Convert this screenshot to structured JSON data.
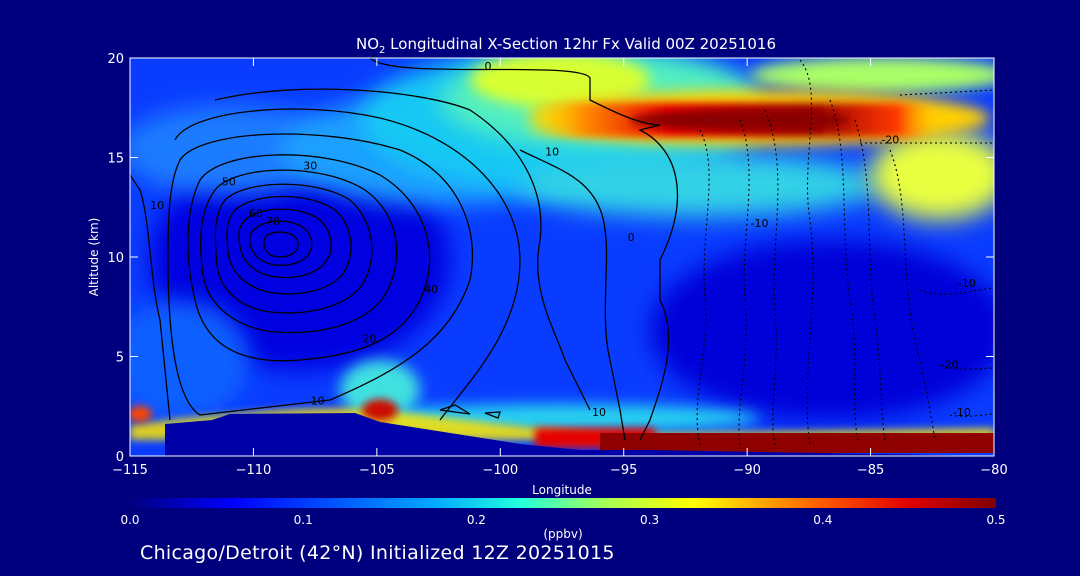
{
  "chart_data": {
    "type": "heatmap",
    "title": "NO₂ Longitudinal X-Section 12hr  Fx Valid 00Z 20251016",
    "title_parts": {
      "lead": "NO",
      "sub": "2",
      "rest": " Longitudinal X-Section 12hr  Fx Valid 00Z 20251016"
    },
    "xlabel": "Longitude",
    "ylabel": "Altitude (km)",
    "xlim": [
      -115,
      -80
    ],
    "ylim": [
      0,
      20
    ],
    "x_ticks": [
      -115,
      -110,
      -105,
      -100,
      -95,
      -90,
      -85,
      -80
    ],
    "y_ticks": [
      0,
      5,
      10,
      15,
      20
    ],
    "colorbar": {
      "label": "(ppbv)",
      "range": [
        0.0,
        0.5
      ],
      "ticks": [
        "0.0",
        "0.1",
        "0.2",
        "0.3",
        "0.4",
        "0.5"
      ]
    },
    "colors": {
      "background": "#00007f",
      "terrain": "#0000a8",
      "contour": "#000000"
    },
    "contour_labels": [
      {
        "text": "0",
        "lon": -100.5,
        "alt": 19.4
      },
      {
        "text": "10",
        "lon": -97.9,
        "alt": 15.1
      },
      {
        "text": "30",
        "lon": -107.7,
        "alt": 14.4
      },
      {
        "text": "50",
        "lon": -111.0,
        "alt": 13.6
      },
      {
        "text": "10",
        "lon": -113.9,
        "alt": 12.4
      },
      {
        "text": "60",
        "lon": -109.9,
        "alt": 12.0
      },
      {
        "text": "70",
        "lon": -109.2,
        "alt": 11.6
      },
      {
        "text": "0",
        "lon": -94.7,
        "alt": 10.8
      },
      {
        "text": "-10",
        "lon": -89.5,
        "alt": 11.5
      },
      {
        "text": "40",
        "lon": -102.8,
        "alt": 8.2
      },
      {
        "text": "20",
        "lon": -105.3,
        "alt": 5.7
      },
      {
        "text": "10",
        "lon": -107.4,
        "alt": 2.6
      },
      {
        "text": "10",
        "lon": -96.0,
        "alt": 2.0
      },
      {
        "text": "-20",
        "lon": -84.2,
        "alt": 15.7
      },
      {
        "text": "-10",
        "lon": -81.1,
        "alt": 8.5
      },
      {
        "text": "-20",
        "lon": -81.8,
        "alt": 4.4
      },
      {
        "text": "-10",
        "lon": -81.3,
        "alt": 2.0
      }
    ]
  },
  "footer": {
    "text": "Chicago/Detroit (42°N) Initialized 12Z 20251015"
  }
}
